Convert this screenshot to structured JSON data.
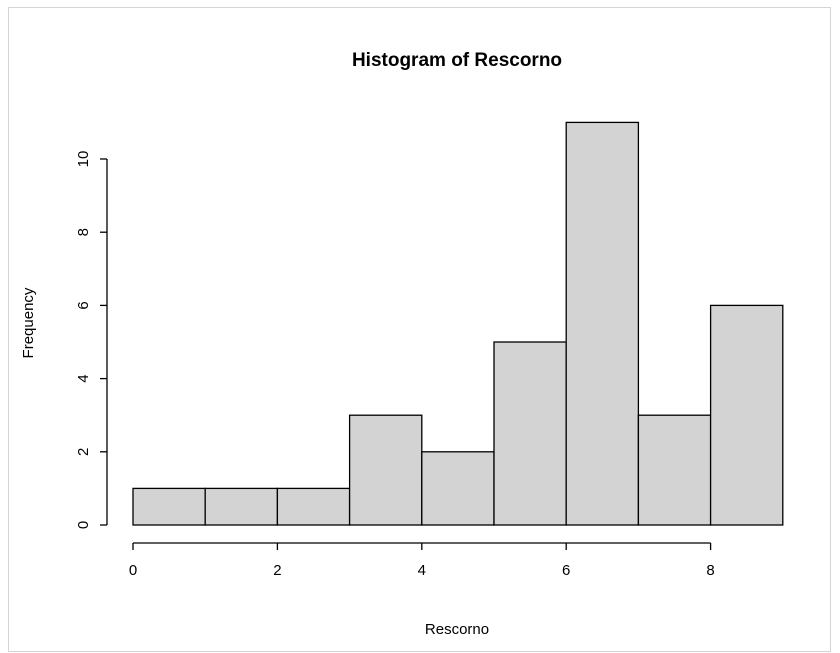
{
  "chart_data": {
    "type": "bar",
    "title": "Histogram of Rescorno",
    "xlabel": "Rescorno",
    "ylabel": "Frequency",
    "bins": [
      {
        "start": 0,
        "end": 1,
        "count": 1
      },
      {
        "start": 1,
        "end": 2,
        "count": 1
      },
      {
        "start": 2,
        "end": 3,
        "count": 1
      },
      {
        "start": 3,
        "end": 4,
        "count": 3
      },
      {
        "start": 4,
        "end": 5,
        "count": 2
      },
      {
        "start": 5,
        "end": 6,
        "count": 5
      },
      {
        "start": 6,
        "end": 7,
        "count": 11
      },
      {
        "start": 7,
        "end": 8,
        "count": 3
      },
      {
        "start": 8,
        "end": 9,
        "count": 6
      }
    ],
    "x_ticks": [
      "0",
      "2",
      "4",
      "6",
      "8"
    ],
    "y_ticks": [
      "0",
      "2",
      "4",
      "6",
      "8",
      "10"
    ],
    "x_tick_values": [
      0,
      2,
      4,
      6,
      8
    ],
    "y_tick_values": [
      0,
      2,
      4,
      6,
      8,
      10
    ],
    "xlim": [
      0,
      9
    ],
    "ylim": [
      0,
      11
    ],
    "grid": false,
    "bar_fill": "#d3d3d3",
    "bar_stroke": "#000000"
  }
}
